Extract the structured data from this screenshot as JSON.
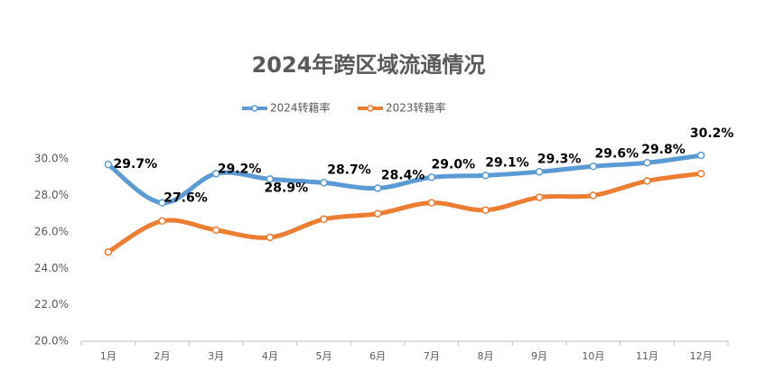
{
  "chart_data": {
    "type": "line",
    "title": "2024年跨区域流通情况",
    "categories": [
      "1月",
      "2月",
      "3月",
      "4月",
      "5月",
      "6月",
      "7月",
      "8月",
      "9月",
      "10月",
      "11月",
      "12月"
    ],
    "series": [
      {
        "name": "2024转籍率",
        "color": "#5b9bd5",
        "values": [
          29.7,
          27.6,
          29.2,
          28.9,
          28.7,
          28.4,
          29.0,
          29.1,
          29.3,
          29.6,
          29.8,
          30.2
        ],
        "value_labels": [
          "29.7%",
          "27.6%",
          "29.2%",
          "28.9%",
          "28.7%",
          "28.4%",
          "29.0%",
          "29.1%",
          "29.3%",
          "29.6%",
          "29.8%",
          "30.2%"
        ]
      },
      {
        "name": "2023转籍率",
        "color": "#ed7d31",
        "values": [
          24.9,
          26.6,
          26.1,
          25.7,
          26.7,
          27.0,
          27.6,
          27.2,
          27.9,
          28.0,
          28.8,
          29.2
        ]
      }
    ],
    "ylim": [
      20,
      31
    ],
    "yticks": [
      {
        "value": 20,
        "label": "20.0%"
      },
      {
        "value": 22,
        "label": "22.0%"
      },
      {
        "value": 24,
        "label": "24.0%"
      },
      {
        "value": 26,
        "label": "26.0%"
      },
      {
        "value": 28,
        "label": "28.0%"
      },
      {
        "value": 30,
        "label": "30.0%"
      }
    ]
  }
}
